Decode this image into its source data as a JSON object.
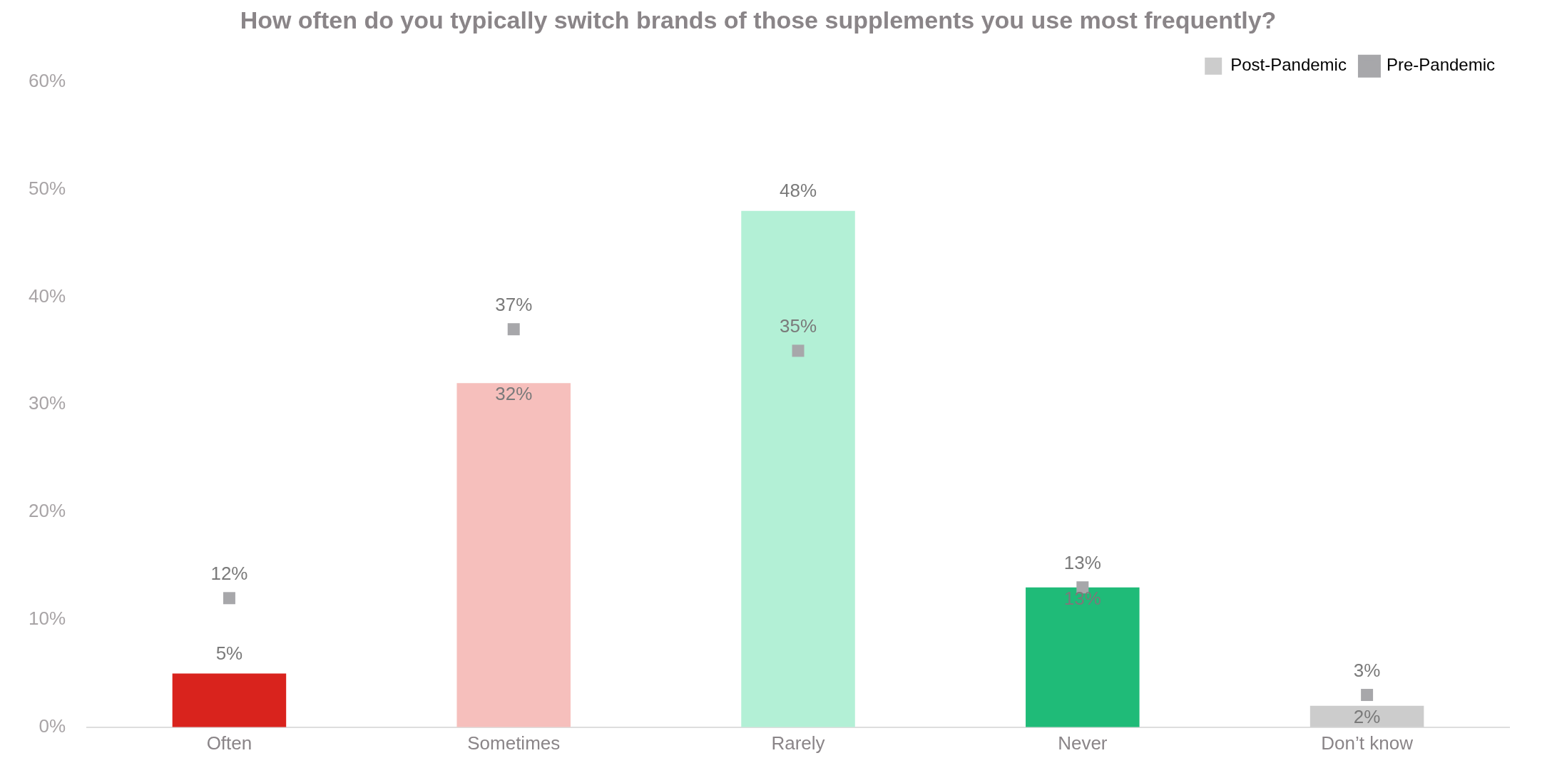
{
  "chart_data": {
    "type": "bar",
    "title": "How often do you typically switch brands of those supplements you use most frequently?",
    "categories": [
      "Often",
      "Sometimes",
      "Rarely",
      "Never",
      "Don’t know"
    ],
    "series": [
      {
        "name": "Post-Pandemic",
        "type": "bar",
        "color": "#cccccc",
        "colors": [
          "#d9231d",
          "#f6bfbc",
          "#b3f0d6",
          "#1fbb78",
          "#cccccc"
        ],
        "values": [
          5,
          32,
          48,
          13,
          2
        ],
        "value_labels": [
          "5%",
          "32%",
          "48%",
          "13%",
          "2%"
        ]
      },
      {
        "name": "Pre-Pandemic",
        "type": "scatter",
        "marker": "square",
        "color": "#a7a7aa",
        "values": [
          12,
          37,
          35,
          13,
          3
        ],
        "value_labels": [
          "12%",
          "37%",
          "35%",
          "13%",
          "3%"
        ]
      }
    ],
    "ylim": [
      0,
      60
    ],
    "yticks": [
      {
        "value": 0,
        "label": "0%"
      },
      {
        "value": 10,
        "label": "10%"
      },
      {
        "value": 20,
        "label": "20%"
      },
      {
        "value": 30,
        "label": "30%"
      },
      {
        "value": 40,
        "label": "40%"
      },
      {
        "value": 50,
        "label": "50%"
      },
      {
        "value": 60,
        "label": "60%"
      }
    ],
    "grid": false,
    "legend": "top right"
  }
}
